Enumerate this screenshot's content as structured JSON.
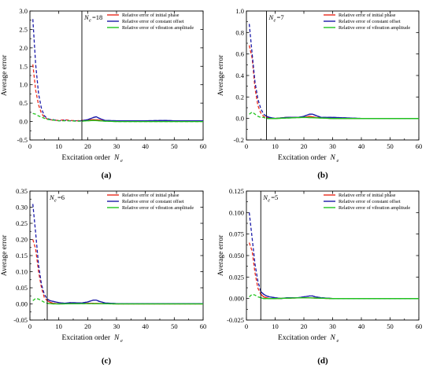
{
  "chart_data": [
    {
      "panel_label": "(a)",
      "type": "line",
      "ylabel": "Average error",
      "xlabel_main": "Excitation order",
      "xlabel_sym": "N",
      "xlabel_sub": "e",
      "xlim": [
        0,
        60
      ],
      "ylim": [
        -0.5,
        3.0
      ],
      "xticks": [
        0,
        10,
        20,
        30,
        40,
        50,
        60
      ],
      "yticks": [
        -0.5,
        0.0,
        0.5,
        1.0,
        1.5,
        2.0,
        2.5,
        3.0
      ],
      "ytick_labels": [
        "-0.5",
        "0.0",
        "0.5",
        "1.0",
        "1.5",
        "2.0",
        "2.5",
        "3.0"
      ],
      "marker": {
        "x": 18,
        "label_sym": "N",
        "label_sub": "e",
        "label_value": "=18"
      },
      "legend": [
        "Relative error of initial phase",
        "Relative error of constant offset",
        "Relative error of vibration amplitude"
      ],
      "series": [
        {
          "name": "Relative error of initial phase",
          "color": "#e8291c",
          "x": [
            1,
            2,
            3,
            4,
            5,
            6,
            7,
            8,
            10,
            12,
            14,
            16,
            18,
            20,
            22,
            24,
            26,
            30,
            40,
            50,
            60
          ],
          "y": [
            1.55,
            0.85,
            0.45,
            0.22,
            0.12,
            0.07,
            0.05,
            0.04,
            0.03,
            0.05,
            0.03,
            0.02,
            0.03,
            0.04,
            0.05,
            0.04,
            0.02,
            0.01,
            0.01,
            0.01,
            0.01
          ]
        },
        {
          "name": "Relative error of constant offset",
          "color": "#1a1aa8",
          "x": [
            1,
            2,
            3,
            4,
            5,
            6,
            7,
            8,
            10,
            12,
            14,
            16,
            18,
            20,
            21,
            22,
            23,
            24,
            26,
            30,
            40,
            47,
            50,
            60
          ],
          "y": [
            2.78,
            1.55,
            0.75,
            0.35,
            0.16,
            0.08,
            0.06,
            0.05,
            0.02,
            0.03,
            0.02,
            0.02,
            0.02,
            0.05,
            0.08,
            0.11,
            0.13,
            0.09,
            0.03,
            0.02,
            0.02,
            0.03,
            0.02,
            0.02
          ]
        },
        {
          "name": "Relative error of vibration amplitude",
          "color": "#22c41e",
          "x": [
            1,
            2,
            3,
            4,
            5,
            6,
            8,
            10,
            12,
            14,
            16,
            18,
            20,
            22,
            24,
            26,
            30,
            40,
            50,
            60
          ],
          "y": [
            0.22,
            0.2,
            0.15,
            0.12,
            0.09,
            0.06,
            0.04,
            0.02,
            0.02,
            0.02,
            0.01,
            0.01,
            0.02,
            0.03,
            0.02,
            0.01,
            0.0,
            0.0,
            0.0,
            0.0
          ]
        }
      ]
    },
    {
      "panel_label": "(b)",
      "type": "line",
      "ylabel": "Average error",
      "xlabel_main": "Excitation order",
      "xlabel_sym": "N",
      "xlabel_sub": "e",
      "xlim": [
        0,
        60
      ],
      "ylim": [
        -0.2,
        1.0
      ],
      "xticks": [
        0,
        10,
        20,
        30,
        40,
        50,
        60
      ],
      "yticks": [
        -0.2,
        0.0,
        0.2,
        0.4,
        0.6,
        0.8,
        1.0
      ],
      "ytick_labels": [
        "-0.2",
        "0.0",
        "0.2",
        "0.4",
        "0.6",
        "0.8",
        "1.0"
      ],
      "marker": {
        "x": 7,
        "label_sym": "N",
        "label_sub": "e",
        "label_value": "=7"
      },
      "legend": [
        "Relative error of initial phase",
        "Relative error of constant offset",
        "Relative error of vibration amplitude"
      ],
      "series": [
        {
          "name": "Relative error of initial phase",
          "color": "#e8291c",
          "x": [
            1,
            2,
            3,
            4,
            5,
            6,
            7,
            8,
            10,
            14,
            20,
            22,
            24,
            30,
            40,
            50,
            60
          ],
          "y": [
            0.68,
            0.56,
            0.28,
            0.12,
            0.05,
            0.02,
            0.01,
            0.0,
            0.0,
            0.01,
            0.01,
            0.02,
            0.01,
            0.0,
            0.0,
            0.0,
            0.0
          ]
        },
        {
          "name": "Relative error of constant offset",
          "color": "#1a1aa8",
          "x": [
            1,
            2,
            3,
            4,
            5,
            6,
            7,
            8,
            10,
            14,
            18,
            20,
            22,
            23,
            24,
            26,
            30,
            40,
            50,
            60
          ],
          "y": [
            0.88,
            0.6,
            0.34,
            0.18,
            0.09,
            0.04,
            0.02,
            0.01,
            0.0,
            0.01,
            0.01,
            0.02,
            0.04,
            0.04,
            0.03,
            0.01,
            0.01,
            0.0,
            0.0,
            0.0
          ]
        },
        {
          "name": "Relative error of vibration amplitude",
          "color": "#22c41e",
          "x": [
            1,
            2,
            3,
            4,
            5,
            6,
            7,
            10,
            20,
            30,
            40,
            50,
            60
          ],
          "y": [
            0.04,
            0.06,
            0.04,
            0.02,
            0.01,
            0.01,
            0.0,
            0.0,
            0.01,
            0.0,
            0.0,
            0.0,
            0.0
          ]
        }
      ]
    },
    {
      "panel_label": "(c)",
      "type": "line",
      "ylabel": "Average error",
      "xlabel_main": "Excitation order",
      "xlabel_sym": "N",
      "xlabel_sub": "e",
      "xlim": [
        0,
        60
      ],
      "ylim": [
        -0.05,
        0.35
      ],
      "xticks": [
        0,
        10,
        20,
        30,
        40,
        50,
        60
      ],
      "yticks": [
        -0.05,
        0.0,
        0.05,
        0.1,
        0.15,
        0.2,
        0.25,
        0.3,
        0.35
      ],
      "ytick_labels": [
        "-0.05",
        "0.00",
        "0.05",
        "0.10",
        "0.15",
        "0.20",
        "0.25",
        "0.30",
        "0.35"
      ],
      "marker": {
        "x": 6,
        "label_sym": "N",
        "label_sub": "e",
        "label_value": "=6"
      },
      "legend": [
        "Relative error of initial phase",
        "Relative error of constant offset",
        "Relative error of vibration amplitude"
      ],
      "series": [
        {
          "name": "Relative error of initial phase",
          "color": "#e8291c",
          "x": [
            1,
            2,
            3,
            4,
            5,
            6,
            7,
            8,
            10,
            20,
            30,
            40,
            50,
            60
          ],
          "y": [
            0.2,
            0.17,
            0.1,
            0.05,
            0.02,
            0.01,
            0.005,
            0.002,
            0.0,
            0.002,
            0.0,
            0.0,
            0.0,
            0.0
          ]
        },
        {
          "name": "Relative error of constant offset",
          "color": "#1a1aa8",
          "x": [
            1,
            2,
            3,
            4,
            5,
            6,
            7,
            8,
            10,
            12,
            14,
            18,
            20,
            22,
            23,
            24,
            26,
            30,
            40,
            50,
            60
          ],
          "y": [
            0.31,
            0.22,
            0.12,
            0.06,
            0.03,
            0.015,
            0.01,
            0.008,
            0.004,
            0.002,
            0.004,
            0.003,
            0.006,
            0.012,
            0.012,
            0.008,
            0.003,
            0.001,
            0.001,
            0.001,
            0.001
          ]
        },
        {
          "name": "Relative error of vibration amplitude",
          "color": "#22c41e",
          "x": [
            1,
            2,
            3,
            4,
            5,
            6,
            8,
            10,
            20,
            30,
            40,
            50,
            60
          ],
          "y": [
            0.01,
            0.017,
            0.015,
            0.01,
            0.005,
            0.002,
            0.0,
            0.0,
            0.001,
            0.0,
            0.0,
            0.0,
            0.0
          ]
        }
      ]
    },
    {
      "panel_label": "(d)",
      "type": "line",
      "ylabel": "Average error",
      "xlabel_main": "Excitation order",
      "xlabel_sym": "N",
      "xlabel_sub": "e",
      "xlim": [
        0,
        60
      ],
      "ylim": [
        -0.025,
        0.125
      ],
      "xticks": [
        0,
        10,
        20,
        30,
        40,
        50,
        60
      ],
      "yticks": [
        -0.025,
        0.0,
        0.025,
        0.05,
        0.075,
        0.1,
        0.125
      ],
      "ytick_labels": [
        "-0.025",
        "0.000",
        "0.025",
        "0.050",
        "0.075",
        "0.100",
        "0.125"
      ],
      "marker": {
        "x": 5,
        "label_sym": "N",
        "label_sub": "e",
        "label_value": "=5"
      },
      "legend": [
        "Relative error of initial phase",
        "Relative error of constant offset",
        "Relative error of vibration amplitude"
      ],
      "series": [
        {
          "name": "Relative error of initial phase",
          "color": "#e8291c",
          "x": [
            1,
            2,
            3,
            4,
            5,
            6,
            8,
            10,
            20,
            30,
            40,
            50,
            60
          ],
          "y": [
            0.065,
            0.055,
            0.03,
            0.012,
            0.005,
            0.002,
            0.0,
            0.0,
            0.001,
            0.0,
            0.0,
            0.0,
            0.0
          ]
        },
        {
          "name": "Relative error of constant offset",
          "color": "#1a1aa8",
          "x": [
            1,
            2,
            3,
            4,
            5,
            6,
            7,
            8,
            10,
            12,
            14,
            18,
            20,
            22,
            23,
            24,
            26,
            30,
            40,
            50,
            60
          ],
          "y": [
            0.1,
            0.07,
            0.04,
            0.02,
            0.008,
            0.005,
            0.003,
            0.002,
            0.001,
            0.0,
            0.001,
            0.001,
            0.002,
            0.003,
            0.003,
            0.002,
            0.001,
            0.0,
            0.0,
            0.0,
            0.0
          ]
        },
        {
          "name": "Relative error of vibration amplitude",
          "color": "#22c41e",
          "x": [
            1,
            2,
            3,
            4,
            5,
            6,
            8,
            10,
            20,
            30,
            40,
            50,
            60
          ],
          "y": [
            0.002,
            0.005,
            0.004,
            0.002,
            0.001,
            0.0,
            0.0,
            0.0,
            0.001,
            0.0,
            0.0,
            0.0,
            0.0
          ]
        }
      ]
    }
  ]
}
